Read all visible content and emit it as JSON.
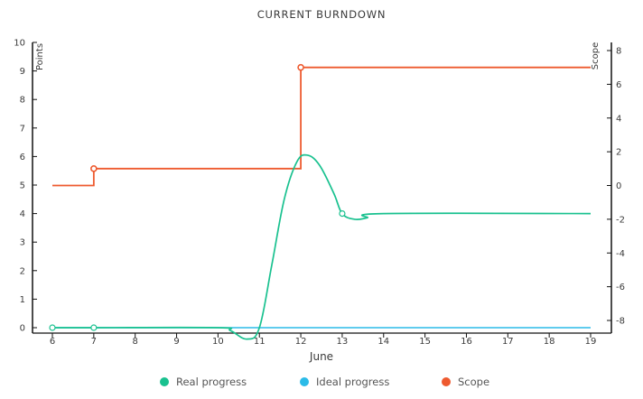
{
  "chart_data": {
    "type": "line",
    "title": "CURRENT BURNDOWN",
    "xlabel": "June",
    "ylabel_left": "Points",
    "ylabel_right": "Scope",
    "x_ticks": [
      "6",
      "7",
      "8",
      "9",
      "10",
      "11",
      "12",
      "13",
      "14",
      "15",
      "16",
      "17",
      "18",
      "19"
    ],
    "xlim": [
      6,
      19
    ],
    "y_left_ticks": [
      "0",
      "1",
      "2",
      "3",
      "4",
      "5",
      "6",
      "7",
      "8",
      "9",
      "10"
    ],
    "ylim_left": [
      0,
      10
    ],
    "y_right_ticks": [
      "-8",
      "-6",
      "-4",
      "-2",
      "0",
      "2",
      "4",
      "6",
      "8"
    ],
    "ylim_right": [
      -8.6,
      8.6
    ],
    "grid": false,
    "legend_position": "bottom",
    "series": [
      {
        "name": "Real progress",
        "color": "#19c18f",
        "points": [
          [
            6,
            0
          ],
          [
            7,
            0
          ],
          [
            10,
            0
          ],
          [
            10.3,
            -0.1
          ],
          [
            10.7,
            -0.4
          ],
          [
            11,
            0
          ],
          [
            11.3,
            2.2
          ],
          [
            11.6,
            4.5
          ],
          [
            11.9,
            5.8
          ],
          [
            12.15,
            6.05
          ],
          [
            12.45,
            5.7
          ],
          [
            12.8,
            4.7
          ],
          [
            13,
            4.0
          ],
          [
            13.3,
            3.8
          ],
          [
            13.6,
            3.85
          ],
          [
            14,
            4.0
          ],
          [
            19,
            4.0
          ]
        ],
        "markers": [
          [
            6,
            0
          ],
          [
            7,
            0
          ],
          [
            13,
            4
          ]
        ]
      },
      {
        "name": "Ideal progress",
        "color": "#2bbbe8",
        "points": [
          [
            6,
            0
          ],
          [
            19,
            0
          ]
        ],
        "markers": []
      },
      {
        "name": "Scope",
        "color": "#ee5a2f",
        "axis": "right",
        "step_points": [
          [
            6,
            0
          ],
          [
            7,
            0
          ],
          [
            7,
            1
          ],
          [
            12,
            1
          ],
          [
            12,
            7
          ],
          [
            19,
            7
          ]
        ],
        "markers": [
          [
            7,
            1
          ],
          [
            12,
            7
          ]
        ]
      }
    ]
  }
}
